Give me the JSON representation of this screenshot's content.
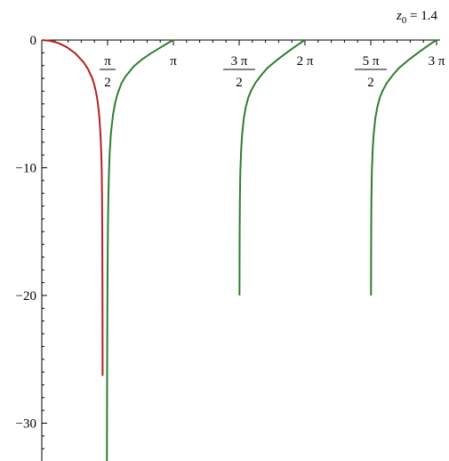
{
  "chart_data": {
    "type": "line",
    "title": "",
    "xlabel": "",
    "ylabel": "",
    "xlim": [
      0,
      9.42478
    ],
    "ylim": [
      -33,
      0
    ],
    "grid": false,
    "annotation": {
      "var": "z",
      "sub": "0",
      "rest": " = 1.4"
    },
    "x_ticks": [
      {
        "value": 1.5708,
        "kind": "frac",
        "num": "π",
        "den": "2"
      },
      {
        "value": 3.14159,
        "kind": "plain",
        "text": "π"
      },
      {
        "value": 4.71239,
        "kind": "frac",
        "num": "3 π",
        "den": "2"
      },
      {
        "value": 6.28319,
        "kind": "plain",
        "text": "2 π"
      },
      {
        "value": 7.85398,
        "kind": "frac",
        "num": "5 π",
        "den": "2"
      },
      {
        "value": 9.42478,
        "kind": "plain",
        "text": "3 π"
      }
    ],
    "y_ticks": [
      {
        "value": 0,
        "text": "0"
      },
      {
        "value": -10,
        "text": "−10"
      },
      {
        "value": -20,
        "text": "−20"
      },
      {
        "value": -30,
        "text": "−30"
      }
    ],
    "colors": {
      "series1": "#b22222",
      "series2": "#2e7d32"
    },
    "series": [
      {
        "color": "#b22222",
        "points": [
          [
            0,
            0
          ],
          [
            0.2,
            -0.06
          ],
          [
            0.4,
            -0.24
          ],
          [
            0.6,
            -0.56
          ],
          [
            0.8,
            -1.04
          ],
          [
            1.0,
            -1.75
          ],
          [
            1.1,
            -2.25
          ],
          [
            1.2,
            -2.95
          ],
          [
            1.25,
            -3.45
          ],
          [
            1.3,
            -4.15
          ],
          [
            1.33,
            -4.75
          ],
          [
            1.36,
            -5.55
          ],
          [
            1.38,
            -6.3
          ],
          [
            1.4,
            -7.3
          ],
          [
            1.41,
            -8.0
          ],
          [
            1.42,
            -8.9
          ],
          [
            1.43,
            -10.2
          ],
          [
            1.435,
            -11.3
          ],
          [
            1.44,
            -12.9
          ],
          [
            1.443,
            -14.5
          ],
          [
            1.446,
            -16.8
          ],
          [
            1.448,
            -19.0
          ],
          [
            1.45,
            -22.0
          ],
          [
            1.451,
            -24.0
          ],
          [
            1.452,
            -26.3
          ]
        ]
      },
      {
        "color": "#2e7d32",
        "points": [
          [
            1.555,
            -33
          ],
          [
            1.56,
            -26.0
          ],
          [
            1.565,
            -21.5
          ],
          [
            1.57,
            -18.3
          ],
          [
            1.58,
            -14.5
          ],
          [
            1.59,
            -12.3
          ],
          [
            1.6,
            -10.8
          ],
          [
            1.62,
            -8.9
          ],
          [
            1.65,
            -7.3
          ],
          [
            1.7,
            -5.85
          ],
          [
            1.75,
            -4.95
          ],
          [
            1.8,
            -4.3
          ],
          [
            1.9,
            -3.4
          ],
          [
            2.0,
            -2.85
          ],
          [
            2.2,
            -2.05
          ],
          [
            2.4,
            -1.5
          ],
          [
            2.6,
            -1.05
          ],
          [
            2.8,
            -0.65
          ],
          [
            3.0,
            -0.25
          ],
          [
            3.14159,
            0
          ]
        ]
      },
      {
        "color": "#2e7d32",
        "points": [
          [
            4.72,
            -20.0
          ],
          [
            4.722,
            -17.0
          ],
          [
            4.725,
            -14.5
          ],
          [
            4.73,
            -12.4
          ],
          [
            4.74,
            -10.3
          ],
          [
            4.76,
            -8.6
          ],
          [
            4.78,
            -7.5
          ],
          [
            4.82,
            -6.2
          ],
          [
            4.87,
            -5.25
          ],
          [
            4.93,
            -4.5
          ],
          [
            5.0,
            -3.95
          ],
          [
            5.1,
            -3.35
          ],
          [
            5.25,
            -2.7
          ],
          [
            5.4,
            -2.15
          ],
          [
            5.6,
            -1.6
          ],
          [
            5.8,
            -1.1
          ],
          [
            6.0,
            -0.62
          ],
          [
            6.15,
            -0.28
          ],
          [
            6.28319,
            0
          ]
        ]
      },
      {
        "color": "#2e7d32",
        "points": [
          [
            7.86,
            -20.0
          ],
          [
            7.862,
            -17.0
          ],
          [
            7.865,
            -14.5
          ],
          [
            7.87,
            -12.4
          ],
          [
            7.88,
            -10.3
          ],
          [
            7.9,
            -8.6
          ],
          [
            7.92,
            -7.5
          ],
          [
            7.96,
            -6.2
          ],
          [
            8.01,
            -5.25
          ],
          [
            8.07,
            -4.5
          ],
          [
            8.14,
            -3.95
          ],
          [
            8.24,
            -3.35
          ],
          [
            8.39,
            -2.7
          ],
          [
            8.54,
            -2.15
          ],
          [
            8.74,
            -1.6
          ],
          [
            8.94,
            -1.1
          ],
          [
            9.14,
            -0.62
          ],
          [
            9.29,
            -0.28
          ],
          [
            9.42478,
            0
          ]
        ]
      }
    ]
  }
}
